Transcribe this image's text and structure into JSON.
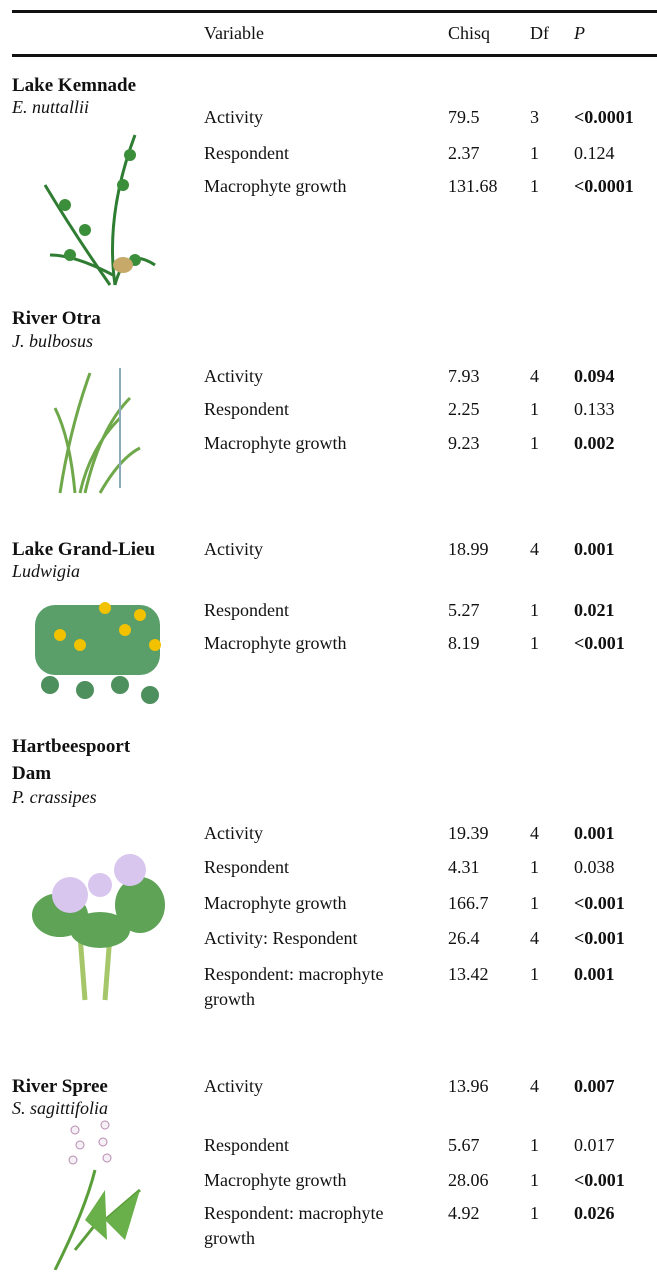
{
  "header": [
    "Variable",
    "Chisq",
    "Df",
    "P"
  ],
  "groups": [
    {
      "site": "Lake Kemnade",
      "species": "E. nuttallii",
      "rows": [
        {
          "variable": "Activity",
          "chisq": "79.5",
          "df": "3",
          "p": "<0.0001",
          "bold": true
        },
        {
          "variable": "Respondent",
          "chisq": "2.37",
          "df": "1",
          "p": "0.124",
          "bold": false
        },
        {
          "variable": "Macrophyte growth",
          "chisq": "131.68",
          "df": "1",
          "p": "<0.0001",
          "bold": true
        }
      ]
    },
    {
      "site": "River Otra",
      "species": "J. bulbosus",
      "rows": [
        {
          "variable": "Activity",
          "chisq": "7.93",
          "df": "4",
          "p": "0.094",
          "bold": true
        },
        {
          "variable": "Respondent",
          "chisq": "2.25",
          "df": "1",
          "p": "0.133",
          "bold": false
        },
        {
          "variable": "Macrophyte growth",
          "chisq": "9.23",
          "df": "1",
          "p": "0.002",
          "bold": true
        }
      ]
    },
    {
      "site": "Lake Grand-Lieu",
      "species": "Ludwigia",
      "rows": [
        {
          "variable": "Activity",
          "chisq": "18.99",
          "df": "4",
          "p": "0.001",
          "bold": true
        },
        {
          "variable": "Respondent",
          "chisq": "5.27",
          "df": "1",
          "p": "0.021",
          "bold": true
        },
        {
          "variable": "Macrophyte growth",
          "chisq": "8.19",
          "df": "1",
          "p": "<0.001",
          "bold": true
        }
      ]
    },
    {
      "site": "Hartbeespoort Dam",
      "species": "P. crassipes",
      "rows": [
        {
          "variable": "Activity",
          "chisq": "19.39",
          "df": "4",
          "p": "0.001",
          "bold": true
        },
        {
          "variable": "Respondent",
          "chisq": "4.31",
          "df": "1",
          "p": "0.038",
          "bold": false
        },
        {
          "variable": "Macrophyte growth",
          "chisq": "166.7",
          "df": "1",
          "p": "<0.001",
          "bold": true
        },
        {
          "variable": "Activity: Respondent",
          "chisq": "26.4",
          "df": "4",
          "p": "<0.001",
          "bold": true
        },
        {
          "variable": "Respondent: macrophyte growth",
          "chisq": "13.42",
          "df": "1",
          "p": "0.001",
          "bold": true
        }
      ]
    },
    {
      "site": "River Spree",
      "species": "S. sagittifolia",
      "rows": [
        {
          "variable": "Activity",
          "chisq": "13.96",
          "df": "4",
          "p": "0.007",
          "bold": true
        },
        {
          "variable": "Respondent",
          "chisq": "5.67",
          "df": "1",
          "p": "0.017",
          "bold": false
        },
        {
          "variable": "Macrophyte growth",
          "chisq": "28.06",
          "df": "1",
          "p": "<0.001",
          "bold": true
        },
        {
          "variable": "Respondent: macrophyte growth",
          "chisq": "4.92",
          "df": "1",
          "p": "0.026",
          "bold": true
        }
      ]
    }
  ]
}
